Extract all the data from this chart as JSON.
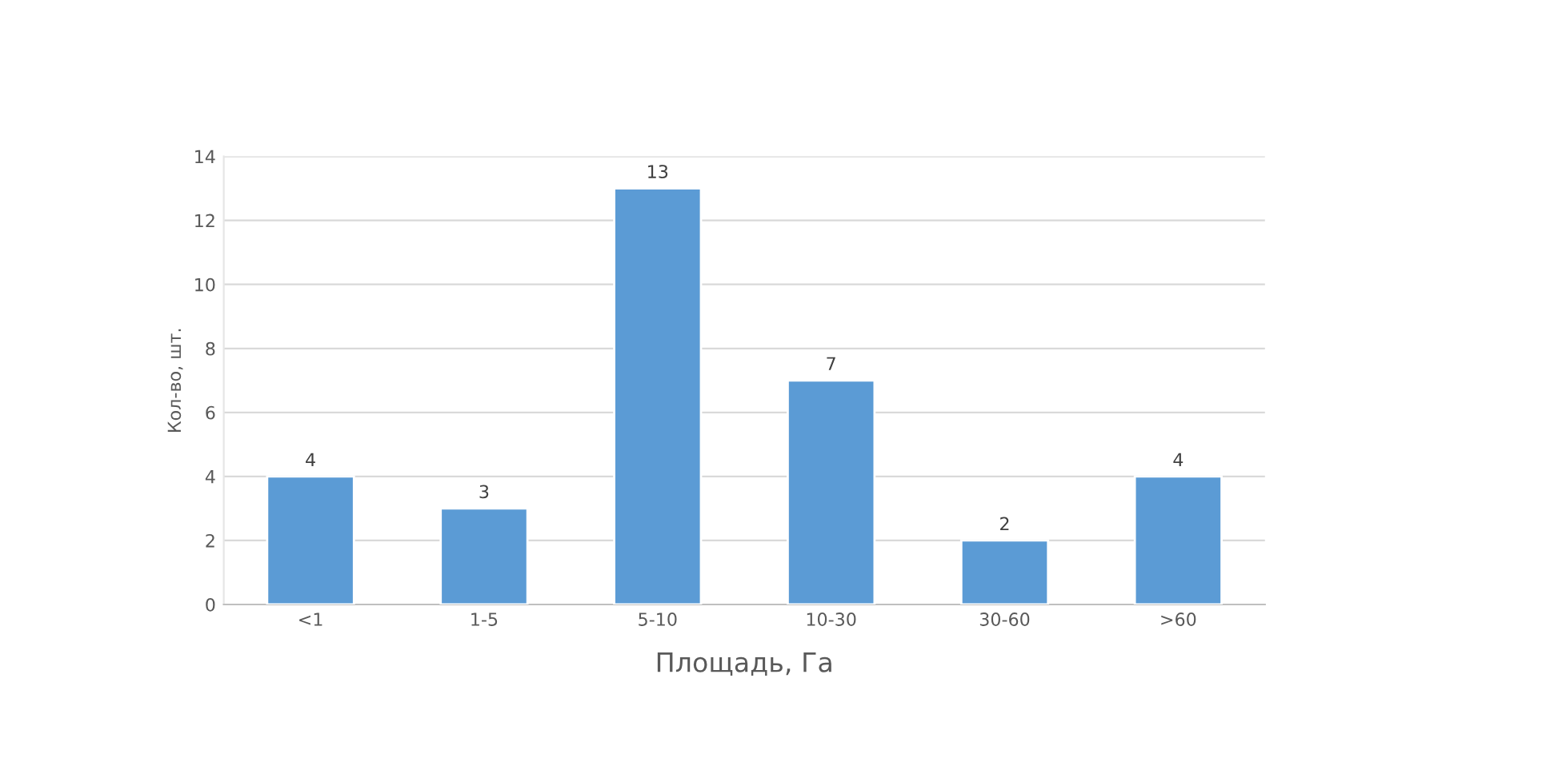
{
  "chart_data": {
    "type": "bar",
    "xlabel": "Площадь, Га",
    "ylabel": "Кол-во, шт.",
    "categories": [
      "<1",
      "1-5",
      "5-10",
      "10-30",
      "30-60",
      ">60"
    ],
    "values": [
      4,
      3,
      13,
      7,
      2,
      4
    ],
    "color": "#5b9bd5",
    "ylim": [
      0,
      14
    ],
    "yticks": [
      0,
      2,
      4,
      6,
      8,
      10,
      12,
      14
    ],
    "grid": "y",
    "data_labels": true
  }
}
